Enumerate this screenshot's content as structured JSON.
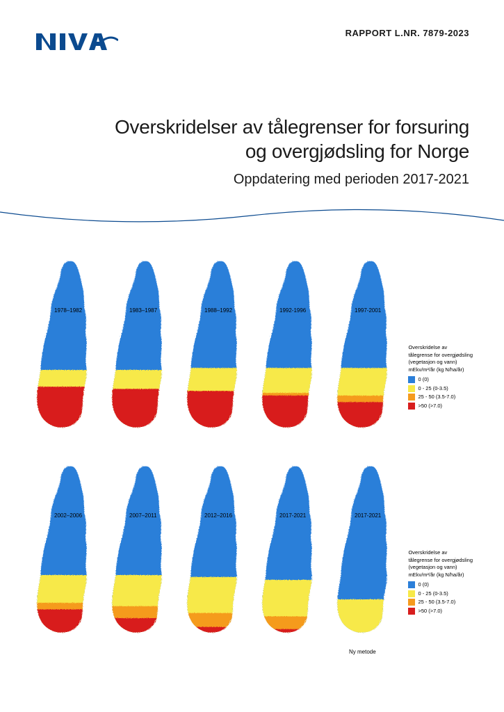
{
  "header": {
    "report_number": "RAPPORT L.NR. 7879-2023",
    "logo_color": "#0b4a8f"
  },
  "title": {
    "main_line1": "Overskridelser av tålegrenser for forsuring",
    "main_line2": "og overgjødsling for Norge",
    "subtitle": "Oppdatering med perioden 2017-2021",
    "title_fontsize": 28,
    "subtitle_fontsize": 20
  },
  "wave": {
    "stroke": "#0b4a8f",
    "stroke_width": 1.2
  },
  "legend": {
    "title_line1": "Overskridelse av",
    "title_line2": "tålegrense for overgjødsling",
    "title_line3": "(vegetasjon og vann)",
    "title_line4": "mEkv/m²/år (kg N/ha/år)",
    "items": [
      {
        "color": "#2b7fd9",
        "label": "0 (0)"
      },
      {
        "color": "#f7e948",
        "label": "0 - 25 (0-3.5)"
      },
      {
        "color": "#f59b1e",
        "label": "25 - 50 (3.5-7.0)"
      },
      {
        "color": "#d81e1e",
        "label": ">50 (>7.0)"
      }
    ]
  },
  "maps": {
    "colors": {
      "blue": "#2b7fd9",
      "yellow": "#f7e948",
      "orange": "#f59b1e",
      "red": "#d81e1e"
    },
    "row1": [
      {
        "label": "1978–1982",
        "red_extent": 0.95,
        "orange_extent": 0.55,
        "yellow_extent": 0.6
      },
      {
        "label": "1983–1987",
        "red_extent": 0.9,
        "orange_extent": 0.55,
        "yellow_extent": 0.6
      },
      {
        "label": "1988–1992",
        "red_extent": 0.85,
        "orange_extent": 0.55,
        "yellow_extent": 0.62
      },
      {
        "label": "1992-1996",
        "red_extent": 0.75,
        "orange_extent": 0.52,
        "yellow_extent": 0.62
      },
      {
        "label": "1997-2001",
        "red_extent": 0.6,
        "orange_extent": 0.48,
        "yellow_extent": 0.62
      }
    ],
    "row2": [
      {
        "label": "2002–2006",
        "red_extent": 0.55,
        "orange_extent": 0.45,
        "yellow_extent": 0.6,
        "sublabel": ""
      },
      {
        "label": "2007–2011",
        "red_extent": 0.35,
        "orange_extent": 0.4,
        "yellow_extent": 0.6,
        "sublabel": ""
      },
      {
        "label": "2012–2016",
        "red_extent": 0.15,
        "orange_extent": 0.3,
        "yellow_extent": 0.58,
        "sublabel": ""
      },
      {
        "label": "2017-2021",
        "red_extent": 0.1,
        "orange_extent": 0.25,
        "yellow_extent": 0.55,
        "sublabel": ""
      },
      {
        "label": "2017-2021",
        "red_extent": 0.0,
        "orange_extent": 0.0,
        "yellow_extent": 0.35,
        "sublabel": "Ny metode"
      }
    ]
  }
}
